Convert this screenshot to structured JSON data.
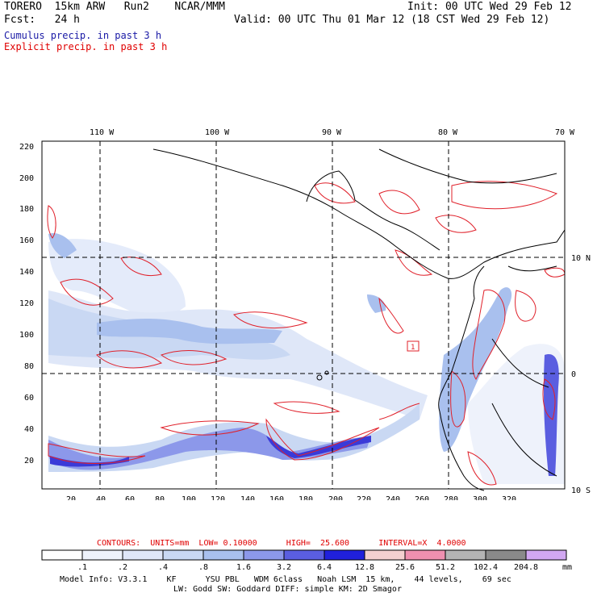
{
  "header": {
    "model": "TORERO  15km ARW   Run2    NCAR/MMM",
    "init": "Init: 00 UTC Wed 29 Feb 12",
    "fcst": "Fcst:   24 h",
    "valid": "Valid: 00 UTC Thu 01 Mar 12 (18 CST Wed 29 Feb 12)",
    "field1": "Cumulus precip. in past 3 h",
    "field2": "Explicit precip. in past 3 h"
  },
  "colors": {
    "field1": "#1a1aa6",
    "field2": "#e00000",
    "contour": "#e0202a",
    "grid": "#000000"
  },
  "map": {
    "lon_labels": [
      "110 W",
      "100 W",
      "90 W",
      "80 W",
      "70 W"
    ],
    "lat_labels": [
      "10 N",
      "0",
      "10 S"
    ],
    "y_ticks": [
      "220",
      "200",
      "180",
      "160",
      "140",
      "120",
      "100",
      "80",
      "60",
      "40",
      "20"
    ],
    "x_ticks": [
      "20",
      "40",
      "60",
      "80",
      "100",
      "120",
      "140",
      "160",
      "180",
      "200",
      "220",
      "240",
      "260",
      "280",
      "300",
      "320"
    ],
    "box_label": "1"
  },
  "contours_line": "CONTOURS:  UNITS=mm  LOW= 0.10000      HIGH=  25.600      INTERVAL=X  4.0000",
  "colorbar": {
    "labels": [
      ".1",
      ".2",
      ".4",
      ".8",
      "1.6",
      "3.2",
      "6.4",
      "12.8",
      "25.6",
      "51.2",
      "102.4",
      "204.8"
    ],
    "unit": "mm",
    "colors": [
      "#ffffff",
      "#eef2fb",
      "#dfe6f8",
      "#c9d8f3",
      "#a9c0ee",
      "#8c98ea",
      "#5a5ee0",
      "#2020dc",
      "#f4d0d0",
      "#ef90b0",
      "#b4b4b4",
      "#8a8a8a",
      "#d2a8f2"
    ]
  },
  "footer": {
    "line1": "Model Info: V3.3.1    KF      YSU PBL   WDM 6class   Noah LSM  15 km,    44 levels,    69 sec",
    "line2": "LW: Godd SW: Goddard DIFF: simple KM: 2D Smagor"
  }
}
